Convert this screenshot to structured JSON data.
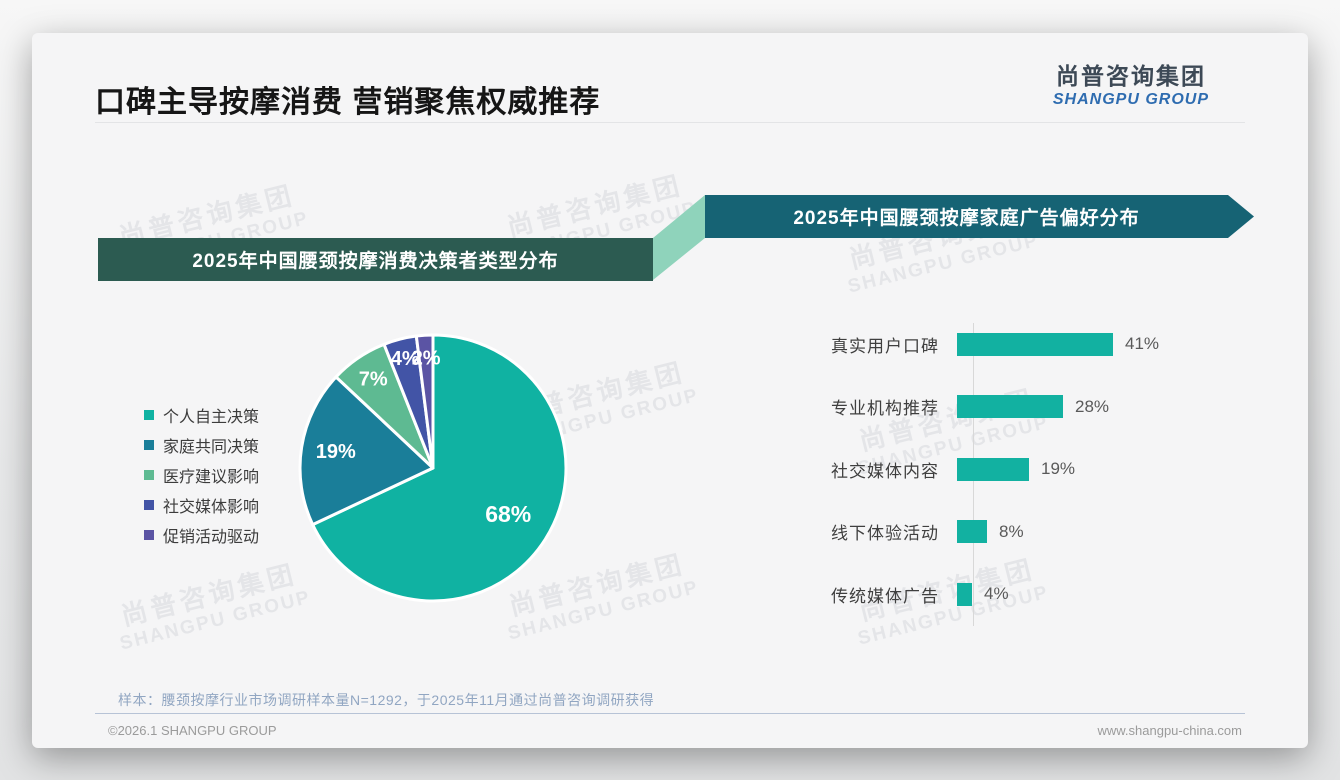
{
  "page": {
    "title": "口碑主导按摩消费 营销聚焦权威推荐",
    "logo": {
      "cn": "尚普咨询集团",
      "en": "SHANGPU GROUP"
    },
    "watermark": {
      "cn": "尚普咨询集团",
      "en": "SHANGPU GROUP"
    },
    "footer": {
      "note": "样本：腰颈按摩行业市场调研样本量N=1292，于2025年11月通过尚普咨询调研获得",
      "copyright": "©2026.1 SHANGPU GROUP",
      "website": "www.shangpu-china.com"
    }
  },
  "colors": {
    "banner_left": "#2c5b51",
    "banner_right": "#166374",
    "banner_connector": "#8fd3bb",
    "bar": "#12b1a1",
    "logo_en_blue": "#2e6cb0"
  },
  "chart_data": [
    {
      "type": "pie",
      "title": "2025年中国腰颈按摩消费决策者类型分布",
      "labels": [
        "个人自主决策",
        "家庭共同决策",
        "医疗建议影响",
        "社交媒体影响",
        "促销活动驱动"
      ],
      "values": [
        68,
        19,
        7,
        4,
        2
      ],
      "value_labels": [
        "68%",
        "19%",
        "7%",
        "4%",
        "2%"
      ],
      "unit": "%",
      "colors": [
        "#10b2a2",
        "#1a7e99",
        "#5eba92",
        "#4254a6",
        "#5b54a4"
      ],
      "legend_position": "left",
      "start_angle_deg": 0,
      "direction": "clockwise"
    },
    {
      "type": "bar",
      "title": "2025年中国腰颈按摩家庭广告偏好分布",
      "orientation": "horizontal",
      "categories": [
        "真实用户口碑",
        "专业机构推荐",
        "社交媒体内容",
        "线下体验活动",
        "传统媒体广告"
      ],
      "values": [
        41,
        28,
        19,
        8,
        4
      ],
      "value_labels": [
        "41%",
        "28%",
        "19%",
        "8%",
        "4%"
      ],
      "unit": "%",
      "bar_color": "#12b1a1",
      "xlim": [
        0,
        45
      ],
      "grid": false,
      "legend": false
    }
  ]
}
